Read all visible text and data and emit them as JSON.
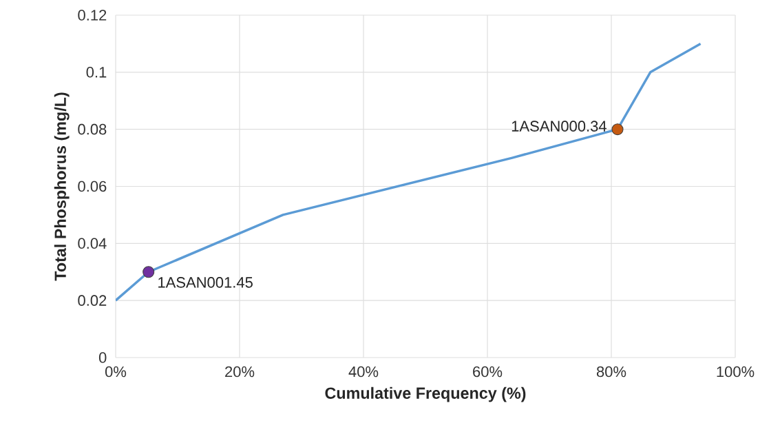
{
  "chart_data": {
    "type": "line",
    "xlabel": "Cumulative Frequency (%)",
    "ylabel": "Total Phosphorus (mg/L)",
    "series": [
      {
        "color": "#5b9bd5",
        "x": [
          0,
          5.3,
          27,
          64,
          81,
          86.3,
          94.4
        ],
        "values": [
          0.02,
          0.03,
          0.05,
          0.07,
          0.08,
          0.1,
          0.11
        ]
      },
      {
        "type": "scatter",
        "name": "1ASAN001.45",
        "color": "#7030a0",
        "x": [
          5.3
        ],
        "values": [
          0.03
        ]
      },
      {
        "type": "scatter",
        "name": "1ASAN000.34",
        "color": "#c55a11",
        "x": [
          81
        ],
        "values": [
          0.08
        ]
      }
    ],
    "xlim": [
      0,
      100
    ],
    "ylim": [
      0,
      0.12
    ],
    "xticks": [
      {
        "value": 0,
        "label": "0%"
      },
      {
        "value": 20,
        "label": "20%"
      },
      {
        "value": 40,
        "label": "40%"
      },
      {
        "value": 60,
        "label": "60%"
      },
      {
        "value": 80,
        "label": "80%"
      },
      {
        "value": 100,
        "label": "100%"
      }
    ],
    "yticks": [
      0,
      0.02,
      0.04,
      0.06,
      0.08,
      0.1,
      0.12
    ],
    "grid": true,
    "legend": false
  }
}
